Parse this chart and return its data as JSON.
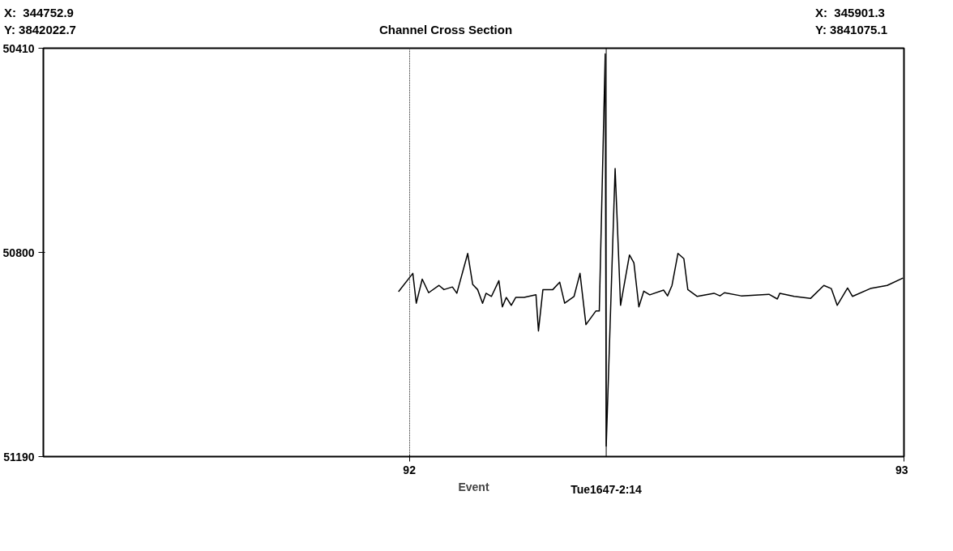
{
  "chart_data": {
    "type": "line",
    "title": "Channel Cross Section",
    "annotations": [
      "X:  344752.9",
      "Y: 3842022.7",
      "X:  345901.3",
      "Y: 3841075.1",
      "Tue1647-2:14"
    ],
    "xlabel": "Event",
    "x": [
      91.978,
      92.007,
      92.014,
      92.026,
      92.039,
      92.06,
      92.07,
      92.087,
      92.096,
      92.118,
      92.128,
      92.138,
      92.148,
      92.155,
      92.166,
      92.181,
      92.188,
      92.196,
      92.206,
      92.215,
      92.232,
      92.256,
      92.261,
      92.27,
      92.29,
      92.304,
      92.314,
      92.333,
      92.345,
      92.357,
      92.377,
      92.384,
      92.396,
      92.398,
      92.416,
      92.427,
      92.445,
      92.454,
      92.464,
      92.474,
      92.486,
      92.514,
      92.522,
      92.531,
      92.543,
      92.555,
      92.563,
      92.582,
      92.616,
      92.628,
      92.637,
      92.671,
      92.727,
      92.744,
      92.749,
      92.778,
      92.811,
      92.838,
      92.853,
      92.865,
      92.886,
      92.896,
      92.932,
      92.966,
      92.998
    ],
    "series": [
      {
        "color": "#000000",
        "values": [
          50875,
          50840,
          50897,
          50851,
          50877,
          50863,
          50871,
          50866,
          50878,
          50802,
          50861,
          50871,
          50897,
          50878,
          50884,
          50854,
          50904,
          50886,
          50901,
          50886,
          50886,
          50881,
          50950,
          50871,
          50871,
          50857,
          50897,
          50884,
          50840,
          50938,
          50912,
          50912,
          50421,
          51170,
          50640,
          50901,
          50805,
          50820,
          50904,
          50874,
          50881,
          50872,
          50883,
          50863,
          50802,
          50812,
          50871,
          50884,
          50878,
          50883,
          50877,
          50883,
          50880,
          50889,
          50878,
          50884,
          50888,
          50863,
          50869,
          50901,
          50868,
          50884,
          50869,
          50863,
          50849
        ]
      }
    ],
    "xlim": [
      91.26,
      93
    ],
    "xticks": [
      92,
      93
    ],
    "ylim": [
      51190,
      50410
    ],
    "yticks": [
      50410,
      50800,
      51190
    ],
    "ref_lines": [
      {
        "axis": "x",
        "value": 92.398,
        "color": "#000000"
      }
    ],
    "grid": "x",
    "marker": "none",
    "line_style": "solid"
  }
}
